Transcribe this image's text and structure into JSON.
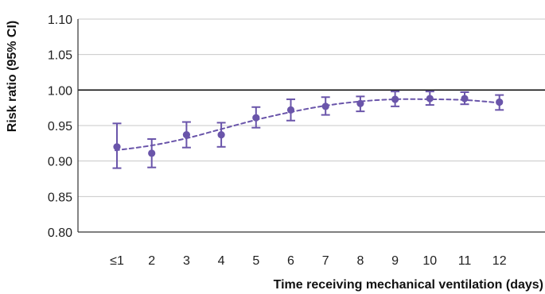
{
  "chart_data": {
    "type": "scatter",
    "title": "",
    "xlabel": "Time receiving mechanical ventilation (days)",
    "ylabel": "Risk ratio (95% CI)",
    "categories": [
      "≤1",
      "2",
      "3",
      "4",
      "5",
      "6",
      "7",
      "8",
      "9",
      "10",
      "11",
      "12"
    ],
    "ylim": [
      0.8,
      1.1
    ],
    "y_ticks": [
      0.8,
      0.85,
      0.9,
      0.95,
      1.0,
      1.05,
      1.1
    ],
    "y_tick_labels": [
      "0.80",
      "0.85",
      "0.90",
      "0.95",
      "1.00",
      "1.05",
      "1.10"
    ],
    "reference_line": 1.0,
    "grid": true,
    "series": [
      {
        "values": [
          0.92,
          0.911,
          0.937,
          0.937,
          0.961,
          0.972,
          0.977,
          0.981,
          0.987,
          0.988,
          0.988,
          0.983
        ],
        "ci_lower": [
          0.89,
          0.891,
          0.919,
          0.92,
          0.947,
          0.957,
          0.965,
          0.97,
          0.977,
          0.979,
          0.98,
          0.972
        ],
        "ci_upper": [
          0.953,
          0.931,
          0.955,
          0.954,
          0.976,
          0.987,
          0.99,
          0.991,
          0.998,
          0.998,
          0.997,
          0.993
        ],
        "color": "#6a55aa"
      }
    ],
    "trend": {
      "style": "dashed",
      "values": [
        0.915,
        0.922,
        0.932,
        0.945,
        0.958,
        0.969,
        0.978,
        0.984,
        0.987,
        0.987,
        0.986,
        0.982
      ],
      "color": "#6a55aa"
    },
    "colors": {
      "grid": "#c8c8c8",
      "reference": "#111111",
      "axis": "#333333",
      "points": "#6a55aa"
    }
  }
}
